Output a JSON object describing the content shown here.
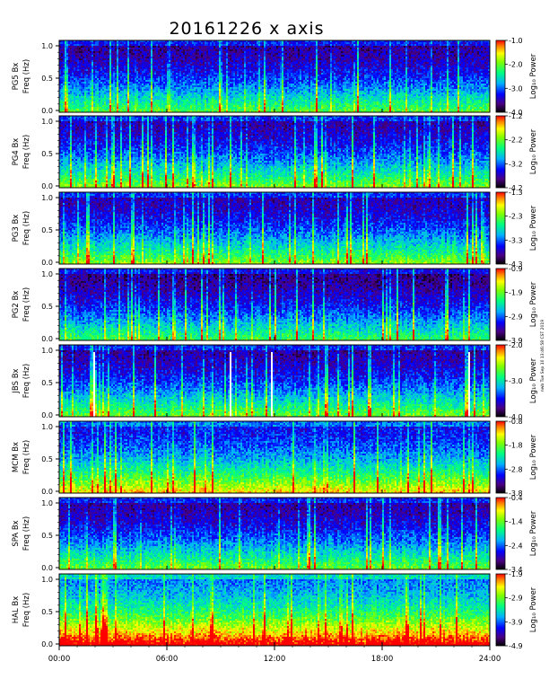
{
  "title": "20161226 x axis",
  "colorbar_unit": "Log₁₀ Power",
  "stamp": "nwb Tue Sep 10 13:46:58 CST 2019",
  "ylabel_freq": "Freq (Hz)",
  "xlabels": [
    "00:00",
    "06:00",
    "12:00",
    "18:00",
    "24:00"
  ],
  "yticks": [
    "1.0",
    "0.5",
    "0.0"
  ],
  "colors": {
    "background": "#000000",
    "accent": "#ff0000"
  },
  "chart_data": {
    "type": "heatmap",
    "xlabel": "",
    "x_range": [
      "00:00",
      "24:00"
    ],
    "y_range": [
      0,
      1.0
    ],
    "panels": [
      {
        "station": "PG5 Bx",
        "cbar": [
          "-1.0",
          "-2.0",
          "-3.0",
          "-4.0"
        ],
        "cmin": -4.0,
        "cmax": -1.0,
        "base": 0.18,
        "gap_hours": [],
        "seed": 11
      },
      {
        "station": "PG4 Bx",
        "cbar": [
          "-1.2",
          "-2.2",
          "-3.2",
          "-4.2"
        ],
        "cmin": -4.2,
        "cmax": -1.2,
        "base": 0.22,
        "gap_hours": [],
        "seed": 23
      },
      {
        "station": "PG3 Bx",
        "cbar": [
          "-1.3",
          "-2.3",
          "-3.3",
          "-4.3"
        ],
        "cmin": -4.3,
        "cmax": -1.3,
        "base": 0.22,
        "gap_hours": [],
        "seed": 37
      },
      {
        "station": "PG2 Bx",
        "cbar": [
          "-0.9",
          "-1.9",
          "-2.9",
          "-3.9"
        ],
        "cmin": -3.9,
        "cmax": -0.9,
        "base": 0.15,
        "gap_hours": [],
        "seed": 41
      },
      {
        "station": "JBS Bx",
        "cbar": [
          "-2.0",
          "-3.0",
          "-4.0"
        ],
        "cmin": -4.0,
        "cmax": -2.0,
        "base": 0.2,
        "gap_hours": [
          1.85,
          9.45,
          11.85,
          22.75
        ],
        "seed": 53
      },
      {
        "station": "MCM Bx",
        "cbar": [
          "-0.8",
          "-1.8",
          "-2.8",
          "-3.8"
        ],
        "cmin": -3.8,
        "cmax": -0.8,
        "base": 0.35,
        "gap_hours": [],
        "seed": 67
      },
      {
        "station": "SPA Bx",
        "cbar": [
          "-0.4",
          "-1.4",
          "-2.4",
          "-3.4"
        ],
        "cmin": -3.4,
        "cmax": -0.4,
        "base": 0.2,
        "gap_hours": [],
        "seed": 71
      },
      {
        "station": "HAL Bx",
        "cbar": [
          "-1.9",
          "-2.9",
          "-3.9",
          "-4.9"
        ],
        "cmin": -4.9,
        "cmax": -1.9,
        "base": 0.55,
        "gap_hours": [],
        "seed": 83
      }
    ]
  }
}
